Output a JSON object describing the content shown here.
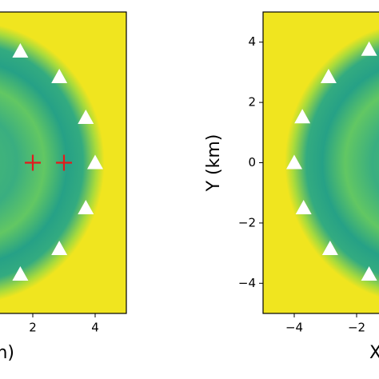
{
  "chart_data": [
    {
      "type": "scatter",
      "x_label": "X (km)",
      "xlim": [
        -5,
        5
      ],
      "ylim": [
        -5,
        5
      ],
      "xticks": [
        2,
        4
      ],
      "series": [
        {
          "marker": "triangle",
          "color": "#ffffff",
          "x": [
            1.6,
            2.85,
            3.7,
            4.0,
            3.7,
            2.85,
            1.6
          ],
          "y": [
            3.7,
            2.85,
            1.5,
            0,
            -1.5,
            -2.85,
            -3.7
          ]
        },
        {
          "marker": "plus",
          "color": "#e41a1c",
          "x": [
            2,
            3
          ],
          "y": [
            0,
            0
          ]
        }
      ]
    },
    {
      "type": "scatter",
      "x_label": "X (km)",
      "y_label": "Y (km)",
      "xlim": [
        -5,
        5
      ],
      "ylim": [
        -5,
        5
      ],
      "xticks": [
        {
          "value": -4,
          "label": "−4"
        },
        {
          "value": -2,
          "label": "−2"
        }
      ],
      "yticks": [
        4,
        2,
        0,
        {
          "value": -2,
          "label": "−2"
        },
        {
          "value": -4,
          "label": "−4"
        }
      ],
      "series": [
        {
          "marker": "triangle",
          "color": "#ffffff",
          "x": [
            -3.74,
            -2.9,
            -1.6,
            -4.0,
            -3.7,
            -2.85,
            -1.6
          ],
          "y": [
            1.52,
            2.85,
            3.76,
            0,
            -1.5,
            -2.85,
            -3.7
          ]
        }
      ]
    }
  ]
}
